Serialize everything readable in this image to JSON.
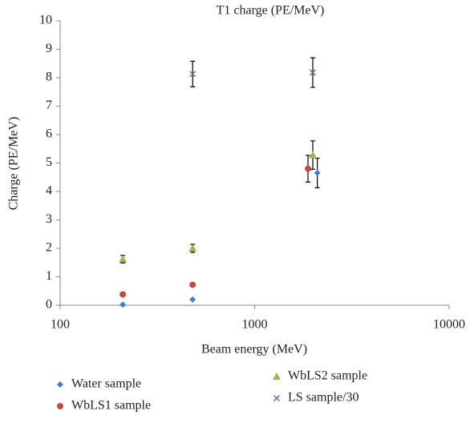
{
  "chart_data": {
    "type": "scatter",
    "title": "T1 charge (PE/MeV)",
    "x_label": "Beam energy (MeV)",
    "y_label": "Charge (PE/MeV)",
    "x_scale": "log",
    "xlim": [
      100,
      10000
    ],
    "xticks": [
      100,
      1000,
      10000
    ],
    "ylim": [
      0,
      10
    ],
    "yticks": [
      0,
      1,
      2,
      3,
      4,
      5,
      6,
      7,
      8,
      9,
      10
    ],
    "grid": false,
    "series": [
      {
        "name": "Water sample",
        "color": "#4a7ebb",
        "marker": "diamond",
        "x": [
          210,
          480,
          2100
        ],
        "values": [
          0.02,
          0.2,
          4.65
        ],
        "errors": [
          null,
          null,
          0.52
        ]
      },
      {
        "name": "WbLS1 sample",
        "color": "#be4b48",
        "marker": "circle",
        "x": [
          210,
          480,
          1880
        ],
        "values": [
          0.38,
          0.72,
          4.8
        ],
        "errors": [
          null,
          null,
          0.47
        ]
      },
      {
        "name": "WbLS2 sample",
        "color": "#98b954",
        "marker": "triangle",
        "x": [
          210,
          480,
          1990
        ],
        "values": [
          1.62,
          2.0,
          5.28
        ],
        "errors": [
          0.13,
          0.14,
          0.5
        ]
      },
      {
        "name": "LS sample/30",
        "color": "#7d60a0",
        "marker": "x",
        "x": [
          480,
          1990
        ],
        "values": [
          8.13,
          8.18
        ],
        "errors": [
          0.45,
          0.52
        ]
      }
    ]
  }
}
